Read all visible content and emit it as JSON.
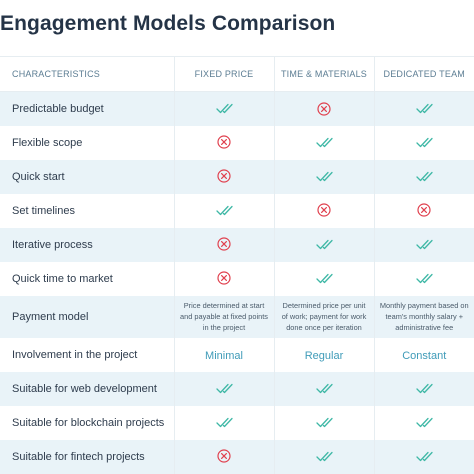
{
  "title": "Engagement Models Comparison",
  "colors": {
    "check": "#3fb8a6",
    "cross": "#e0404e",
    "stripe": "#e9f3f8",
    "header_text": "#5c7d93",
    "word": "#3f9bb8"
  },
  "columns": [
    "CHARACTERISTICS",
    "FIXED PRICE",
    "TIME & MATERIALS",
    "DEDICATED TEAM"
  ],
  "rows": [
    {
      "label": "Predictable budget",
      "values": [
        {
          "type": "check"
        },
        {
          "type": "cross"
        },
        {
          "type": "check"
        }
      ]
    },
    {
      "label": "Flexible scope",
      "values": [
        {
          "type": "cross"
        },
        {
          "type": "check"
        },
        {
          "type": "check"
        }
      ]
    },
    {
      "label": "Quick start",
      "values": [
        {
          "type": "cross"
        },
        {
          "type": "check"
        },
        {
          "type": "check"
        }
      ]
    },
    {
      "label": "Set timelines",
      "values": [
        {
          "type": "check"
        },
        {
          "type": "cross"
        },
        {
          "type": "cross"
        }
      ]
    },
    {
      "label": "Iterative process",
      "values": [
        {
          "type": "cross"
        },
        {
          "type": "check"
        },
        {
          "type": "check"
        }
      ]
    },
    {
      "label": "Quick time to market",
      "values": [
        {
          "type": "cross"
        },
        {
          "type": "check"
        },
        {
          "type": "check"
        }
      ]
    },
    {
      "label": "Payment model",
      "values": [
        {
          "type": "text",
          "text": "Price determined at start and payable at fixed points in the project"
        },
        {
          "type": "text",
          "text": "Determined price per unit of work; payment for work done once per iteration"
        },
        {
          "type": "text",
          "text": "Monthly payment based on team's monthly salary + administrative fee"
        }
      ]
    },
    {
      "label": "Involvement in the project",
      "values": [
        {
          "type": "word",
          "text": "Minimal"
        },
        {
          "type": "word",
          "text": "Regular"
        },
        {
          "type": "word",
          "text": "Constant"
        }
      ]
    },
    {
      "label": "Suitable for web development",
      "values": [
        {
          "type": "check"
        },
        {
          "type": "check"
        },
        {
          "type": "check"
        }
      ]
    },
    {
      "label": "Suitable for blockchain projects",
      "values": [
        {
          "type": "check"
        },
        {
          "type": "check"
        },
        {
          "type": "check"
        }
      ]
    },
    {
      "label": "Suitable for fintech projects",
      "values": [
        {
          "type": "cross"
        },
        {
          "type": "check"
        },
        {
          "type": "check"
        }
      ]
    }
  ]
}
